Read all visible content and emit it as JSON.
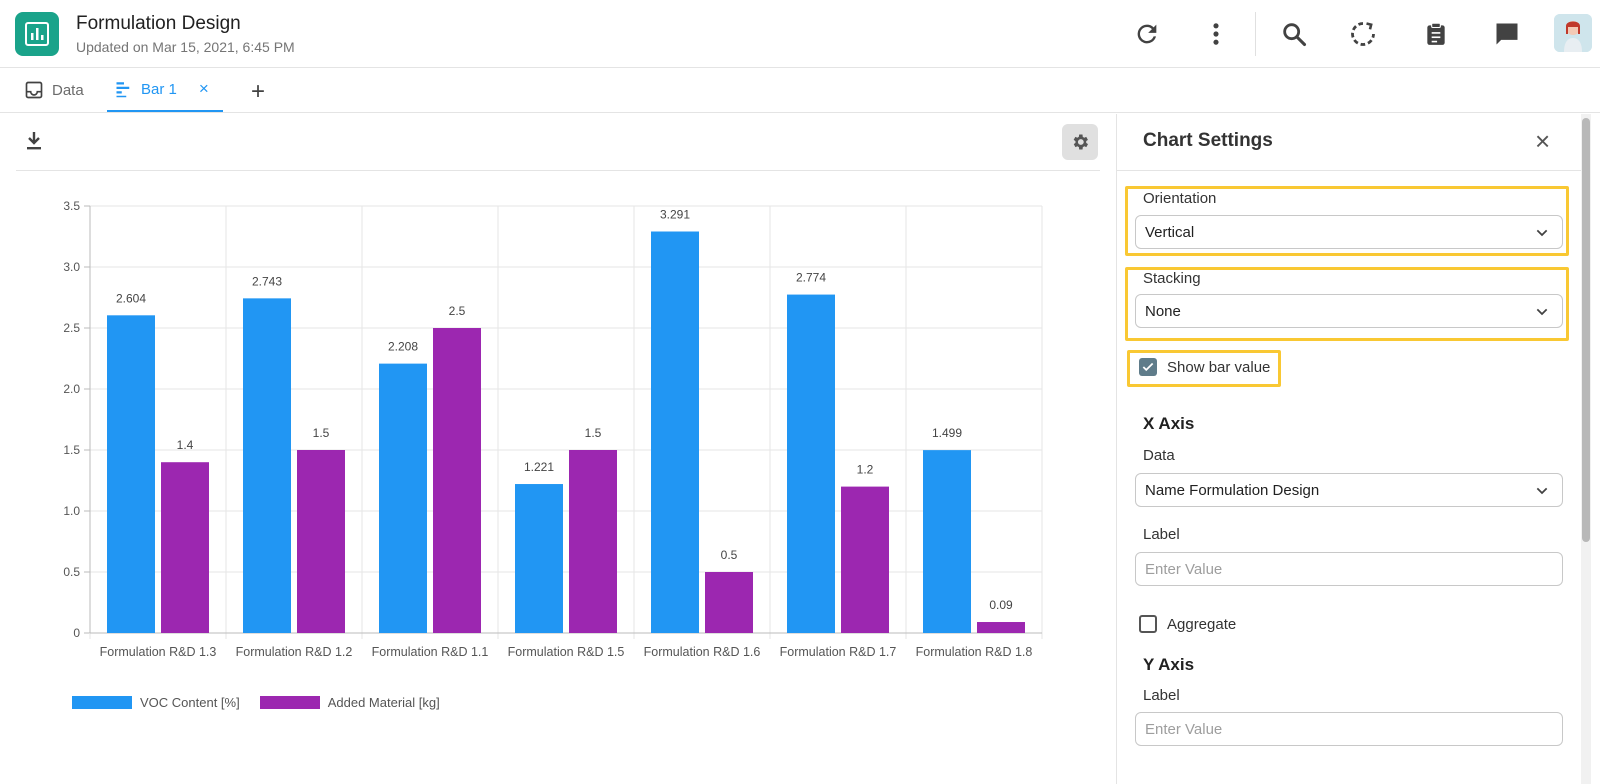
{
  "header": {
    "title": "Formulation Design",
    "subtitle": "Updated on Mar 15, 2021, 6:45 PM",
    "icons": [
      "refresh-icon",
      "more-vert-icon",
      "search-icon",
      "sync-icon",
      "clipboard-icon",
      "chat-icon"
    ]
  },
  "tabs": [
    {
      "label": "Data",
      "icon": "inbox-icon",
      "active": false
    },
    {
      "label": "Bar 1",
      "icon": "bar-chart-icon",
      "active": true,
      "close": "×"
    }
  ],
  "add_tab": "+",
  "chart_data": {
    "type": "bar",
    "orientation": "vertical",
    "categories": [
      "Formulation R&D 1.3",
      "Formulation R&D 1.2",
      "Formulation R&D 1.1",
      "Formulation R&D 1.5",
      "Formulation R&D 1.6",
      "Formulation R&D 1.7",
      "Formulation R&D 1.8"
    ],
    "series": [
      {
        "name": "VOC Content [%]",
        "color": "#2196f3",
        "values": [
          2.604,
          2.743,
          2.208,
          1.221,
          3.291,
          2.774,
          1.499
        ]
      },
      {
        "name": "Added Material [kg]",
        "color": "#9c27b0",
        "values": [
          1.4,
          1.5,
          2.5,
          1.5,
          0.5,
          1.2,
          0.09
        ]
      }
    ],
    "value_labels": [
      [
        "2.604",
        "2.743",
        "2.208",
        "1.221",
        "3.291",
        "2.774",
        "1.499"
      ],
      [
        "1.4",
        "1.5",
        "2.5",
        "1.5",
        "0.5",
        "1.2",
        "0.09"
      ]
    ],
    "yticks": [
      "0",
      "0.5",
      "1.0",
      "1.5",
      "2.0",
      "2.5",
      "3.0",
      "3.5"
    ],
    "ylim": [
      0,
      3.5
    ],
    "grid": true,
    "legend": "bottom-left"
  },
  "panel": {
    "title": "Chart Settings",
    "close": "×",
    "orientation": {
      "label": "Orientation",
      "value": "Vertical"
    },
    "stacking": {
      "label": "Stacking",
      "value": "None"
    },
    "show_bar_value": {
      "label": "Show bar value",
      "checked": true
    },
    "x_axis": {
      "heading": "X Axis",
      "data_label": "Data",
      "data_value": "Name Formulation Design",
      "label_label": "Label",
      "label_placeholder": "Enter Value"
    },
    "aggregate": {
      "label": "Aggregate",
      "checked": false
    },
    "y_axis": {
      "heading": "Y Axis",
      "label_label": "Label",
      "label_placeholder": "Enter Value"
    }
  },
  "colors": {
    "accent": "#2196f3",
    "logo": "#1aa38a",
    "highlight": "#f9c833",
    "purple": "#9c27b0"
  }
}
